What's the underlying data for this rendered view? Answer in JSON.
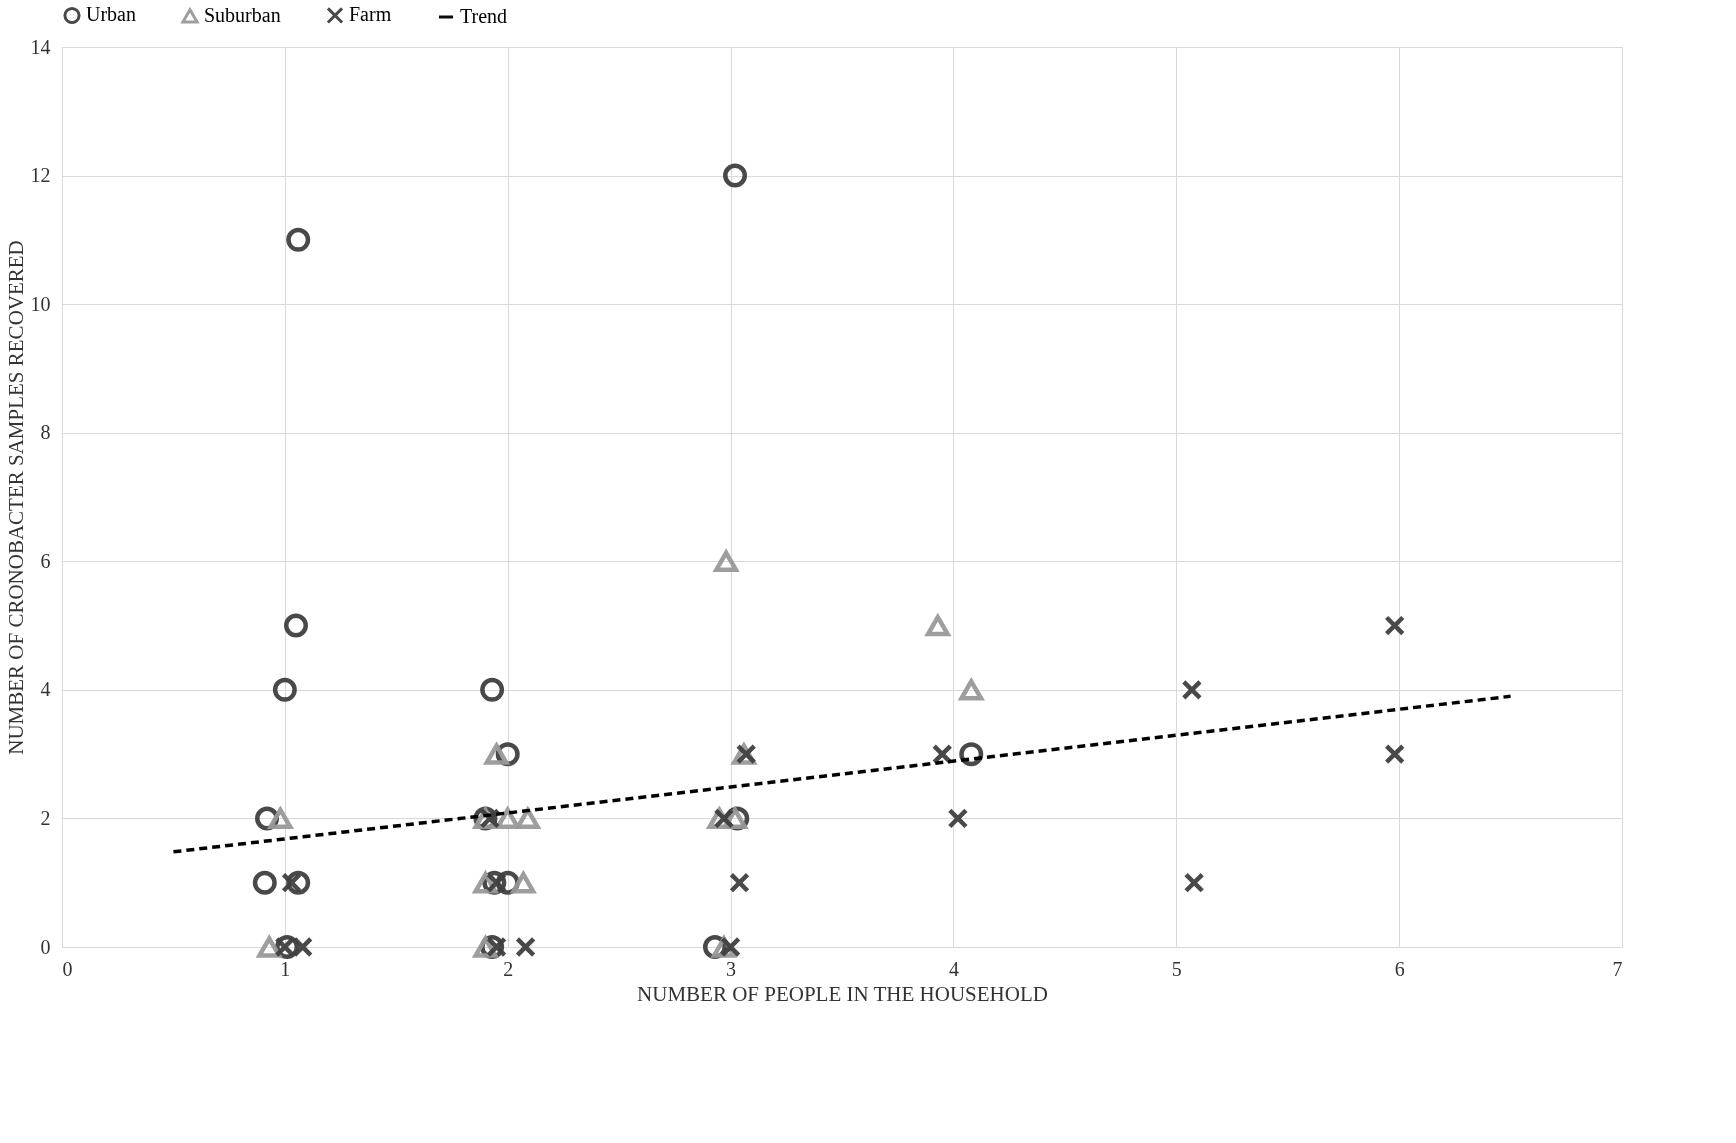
{
  "chart_data": {
    "type": "scatter",
    "xlabel": "NUMBER OF PEOPLE IN THE HOUSEHOLD",
    "ylabel": "NUMBER OF CRONOBACTER SAMPLES RECOVERED",
    "xlim": [
      0,
      7
    ],
    "xticks": [
      0,
      1,
      2,
      3,
      4,
      5,
      6,
      7
    ],
    "ylim": [
      0,
      14
    ],
    "yticks": [
      0,
      2,
      4,
      6,
      8,
      10,
      12,
      14
    ],
    "grid": true,
    "legend": "top",
    "series": [
      {
        "name": "Urban",
        "color": "#404040",
        "marker": "circle",
        "x": [
          1.06,
          3.02,
          1.05,
          1.0,
          0.92,
          0.91,
          1.06,
          1.01,
          1.93,
          2.0,
          1.9,
          1.94,
          2.0,
          1.93,
          2.93,
          3.03,
          4.08
        ],
        "values": [
          11,
          12,
          5,
          4,
          2,
          1,
          1,
          0,
          4,
          3,
          2,
          1,
          1,
          0,
          0,
          2,
          3
        ]
      },
      {
        "name": "Suburban",
        "color": "#999999",
        "marker": "triangle",
        "x": [
          0.98,
          0.93,
          1.95,
          1.9,
          2.0,
          2.09,
          1.9,
          2.07,
          1.9,
          2.98,
          2.95,
          3.02,
          3.06,
          2.97,
          3.93,
          4.08
        ],
        "values": [
          2,
          0,
          3,
          2,
          2,
          2,
          1,
          1,
          0,
          6,
          2,
          2,
          3,
          0,
          5,
          4
        ]
      },
      {
        "name": "Farm",
        "color": "#404040",
        "marker": "cross",
        "x": [
          1.0,
          1.08,
          1.03,
          1.92,
          1.95,
          1.95,
          2.08,
          2.97,
          3.07,
          3.04,
          3.0,
          3.95,
          4.02,
          5.07,
          5.08,
          5.98,
          5.98
        ],
        "values": [
          0,
          0,
          1,
          2,
          1,
          0,
          0,
          2,
          3,
          1,
          0,
          3,
          2,
          4,
          1,
          5,
          3
        ]
      },
      {
        "name": "Trend",
        "type": "line",
        "color": "#000000",
        "line_style": "dashed",
        "x": [
          0.5,
          6.5
        ],
        "values": [
          1.48,
          3.9
        ]
      }
    ]
  }
}
